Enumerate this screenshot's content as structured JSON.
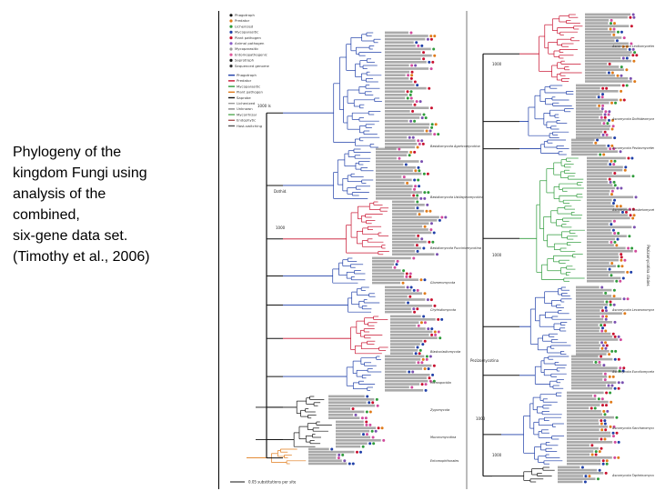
{
  "caption": {
    "lines": [
      "Phylogeny of the",
      "kingdom Fungi using",
      "analysis of the",
      "combined,",
      "six-gene data set.",
      "(Timothy et al., 2006)"
    ]
  },
  "figure": {
    "colors": {
      "blue": "#1f3fa8",
      "red": "#c8102e",
      "green": "#2e9b3b",
      "black": "#111111",
      "orange": "#e07b1a",
      "gray": "#9a9a9a",
      "divider": "#555555"
    },
    "legend_left": [
      "Phagotroph",
      "Predator",
      "Lichenized",
      "Mycoparasitic",
      "Plant pathogen",
      "Animal pathogen",
      "Mycoparasitic",
      "Entomopathogenic",
      "Saprotroph",
      "Sequenced genome"
    ],
    "legend_right": [
      "Phagotroph",
      "Predator",
      "Mycoparasitic",
      "Plant pathogen",
      "Saprobe",
      "Lichenized",
      "Unknown",
      "Mycorrhizal",
      "Endophytic",
      "Host-switching"
    ],
    "node_labels": [
      "1000 Is",
      "Dothid.",
      "1000",
      "1000",
      "1000",
      "Pezizomycotina",
      "1000",
      "1000"
    ],
    "group_labels_left": [
      "Basidiomycota Agaricomycotina",
      "Basidiomycota Ustilaginomycotina",
      "Basidiomycota Pucciniomycotina",
      "Glomeromycota",
      "Chytridiomycota",
      "Blastocladiomycota",
      "Microsporidia",
      "Zygomycota",
      "Mucoromycotina",
      "Entomophthorales"
    ],
    "group_labels_right": [
      "Ascomycota Leotiomycetes",
      "Ascomycota Dothideomycetes",
      "Ascomycota Pezizomycetes",
      "Ascomycota Sordariomycetes",
      "Ascomycota Lecanoromycetes",
      "Ascomycota Eurotiomycetes",
      "Ascomycota Saccharomycotina",
      "Ascomycota Taphrinomycotina"
    ],
    "side_label": "Pezizomycotina clades",
    "scale_label": "0.05 substitutions per site"
  }
}
